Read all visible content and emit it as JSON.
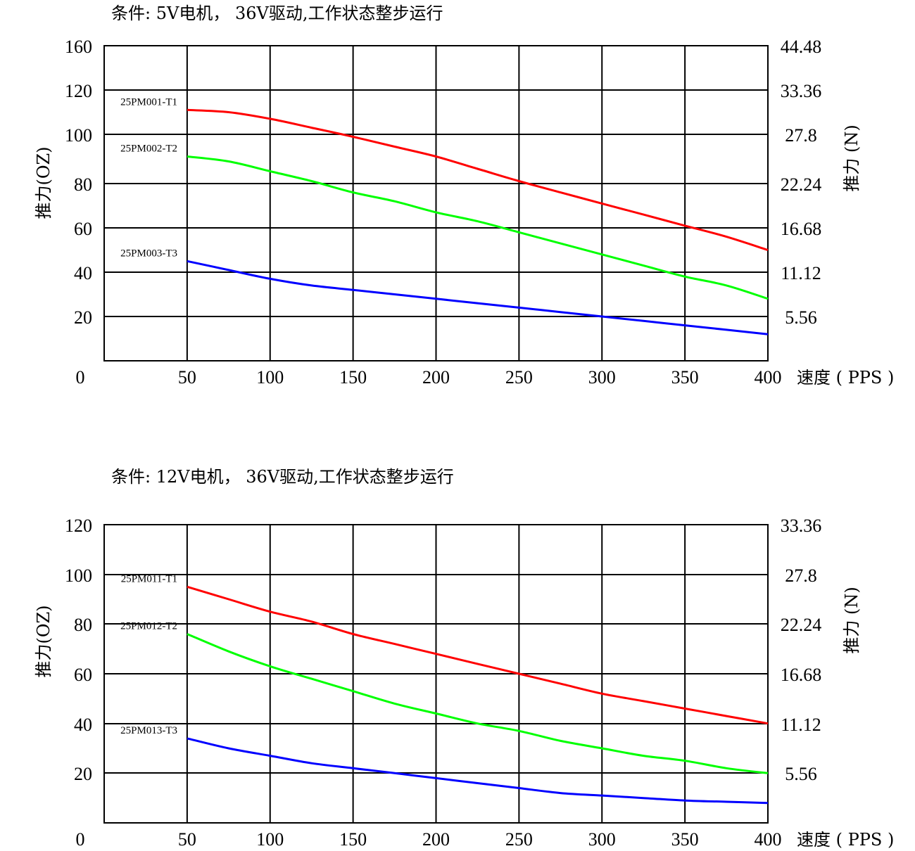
{
  "chart_data": [
    {
      "type": "line",
      "title": "条件: 5V电机， 36V驱动,工作状态整步运行",
      "xlabel": "速度 ( PPS )",
      "ylabel": "推力(OZ)",
      "y2label": "推力 (N)",
      "x_ticks": [
        "0",
        "50",
        "100",
        "150",
        "200",
        "250",
        "300",
        "350",
        "400"
      ],
      "y_ticks": [
        "160",
        "120",
        "100",
        "80",
        "60",
        "40",
        "20"
      ],
      "y_tick_values": [
        160,
        120,
        100,
        80,
        60,
        40,
        20
      ],
      "y2_ticks": [
        "44.48",
        "33.36",
        "27.8",
        "22.24",
        "16.68",
        "11.12",
        "5.56"
      ],
      "xlim": [
        0,
        400
      ],
      "grid": true,
      "series": [
        {
          "name": "25PM001-T1",
          "color": "#ff0000",
          "x": [
            50,
            75,
            100,
            125,
            150,
            175,
            200,
            225,
            250,
            275,
            300,
            325,
            350,
            375,
            400
          ],
          "y": [
            111,
            110,
            107,
            103,
            99,
            95,
            91,
            86,
            81,
            76,
            71,
            66,
            61,
            56,
            50
          ]
        },
        {
          "name": "25PM002-T2",
          "color": "#00ff00",
          "x": [
            50,
            75,
            100,
            125,
            150,
            175,
            200,
            225,
            250,
            275,
            300,
            325,
            350,
            375,
            400
          ],
          "y": [
            91,
            89,
            85,
            81,
            76,
            72,
            67,
            63,
            58,
            53,
            48,
            43,
            38,
            34,
            28
          ]
        },
        {
          "name": "25PM003-T3",
          "color": "#0000ff",
          "x": [
            50,
            75,
            100,
            125,
            150,
            175,
            200,
            225,
            250,
            275,
            300,
            325,
            350,
            375,
            400
          ],
          "y": [
            45,
            41,
            37,
            34,
            32,
            30,
            28,
            26,
            24,
            22,
            20,
            18,
            16,
            14,
            12
          ]
        }
      ]
    },
    {
      "type": "line",
      "title": "条件: 12V电机， 36V驱动,工作状态整步运行",
      "xlabel": "速度 ( PPS )",
      "ylabel": "推力(OZ)",
      "y2label": "推力 (N)",
      "x_ticks": [
        "0",
        "50",
        "100",
        "150",
        "200",
        "250",
        "300",
        "350",
        "400"
      ],
      "y_ticks": [
        "120",
        "100",
        "80",
        "60",
        "40",
        "20"
      ],
      "y_tick_values": [
        120,
        100,
        80,
        60,
        40,
        20
      ],
      "y2_ticks": [
        "33.36",
        "27.8",
        "22.24",
        "16.68",
        "11.12",
        "5.56"
      ],
      "xlim": [
        0,
        400
      ],
      "ylim": [
        0,
        120
      ],
      "grid": true,
      "series": [
        {
          "name": "25PM011-T1",
          "color": "#ff0000",
          "x": [
            50,
            75,
            100,
            125,
            150,
            175,
            200,
            225,
            250,
            275,
            300,
            325,
            350,
            375,
            400
          ],
          "y": [
            95,
            90,
            85,
            81,
            76,
            72,
            68,
            64,
            60,
            56,
            52,
            49,
            46,
            43,
            40
          ]
        },
        {
          "name": "25PM012-T2",
          "color": "#00ff00",
          "x": [
            50,
            75,
            100,
            125,
            150,
            175,
            200,
            225,
            250,
            275,
            300,
            325,
            350,
            375,
            400
          ],
          "y": [
            76,
            69,
            63,
            58,
            53,
            48,
            44,
            40,
            37,
            33,
            30,
            27,
            25,
            22,
            20
          ]
        },
        {
          "name": "25PM013-T3",
          "color": "#0000ff",
          "x": [
            50,
            75,
            100,
            125,
            150,
            175,
            200,
            225,
            250,
            275,
            300,
            325,
            350,
            375,
            400
          ],
          "y": [
            34,
            30,
            27,
            24,
            22,
            20,
            18,
            16,
            14,
            12,
            11,
            10,
            9,
            8.5,
            8
          ]
        }
      ]
    }
  ]
}
